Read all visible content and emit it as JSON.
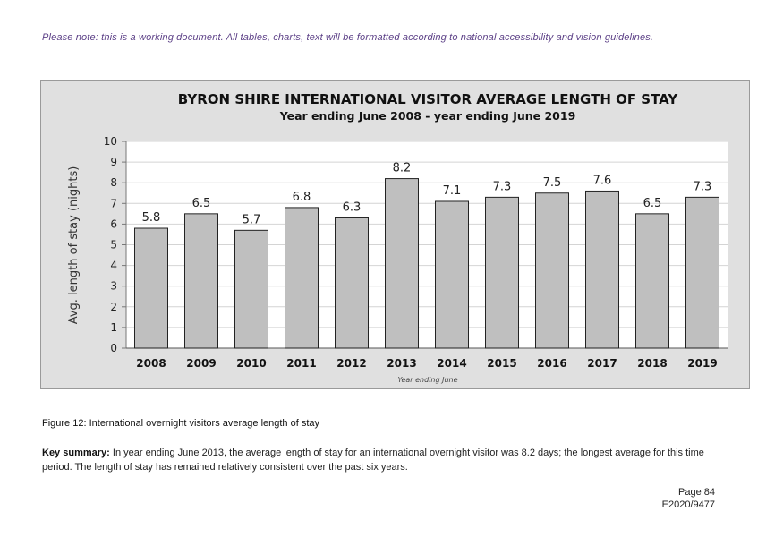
{
  "note": "Please note: this is a working document. All tables, charts, text will be formatted according to national accessibility and vision guidelines.",
  "chart_data": {
    "type": "bar",
    "title": "BYRON SHIRE INTERNATIONAL VISITOR AVERAGE LENGTH OF STAY",
    "subtitle": "Year ending June 2008 - year ending June 2019",
    "categories": [
      "2008",
      "2009",
      "2010",
      "2011",
      "2012",
      "2013",
      "2014",
      "2015",
      "2016",
      "2017",
      "2018",
      "2019"
    ],
    "values": [
      5.8,
      6.5,
      5.7,
      6.8,
      6.3,
      8.2,
      7.1,
      7.3,
      7.5,
      7.6,
      6.5,
      7.3
    ],
    "data_labels": [
      "5.8",
      "6.5",
      "5.7",
      "6.8",
      "6.3",
      "8.2",
      "7.1",
      "7.3",
      "7.5",
      "7.6",
      "6.5",
      "7.3"
    ],
    "xlabel": "Year ending June",
    "ylabel": "Avg. length of stay (nights)",
    "ylim": [
      0,
      10
    ],
    "yticks": [
      "0",
      "1",
      "2",
      "3",
      "4",
      "5",
      "6",
      "7",
      "8",
      "9",
      "10"
    ],
    "grid": true,
    "bar_color": "#bfbfbf"
  },
  "caption": "Figure 12: International overnight visitors average length of stay",
  "summary": {
    "label": "Key summary:",
    "text": " In year ending June 2013, the average length of stay for an international overnight visitor was 8.2 days; the longest average for this time period. The length of stay has remained relatively consistent over the past six years."
  },
  "page_number": "Page 84",
  "doc_ref": "E2020/9477"
}
